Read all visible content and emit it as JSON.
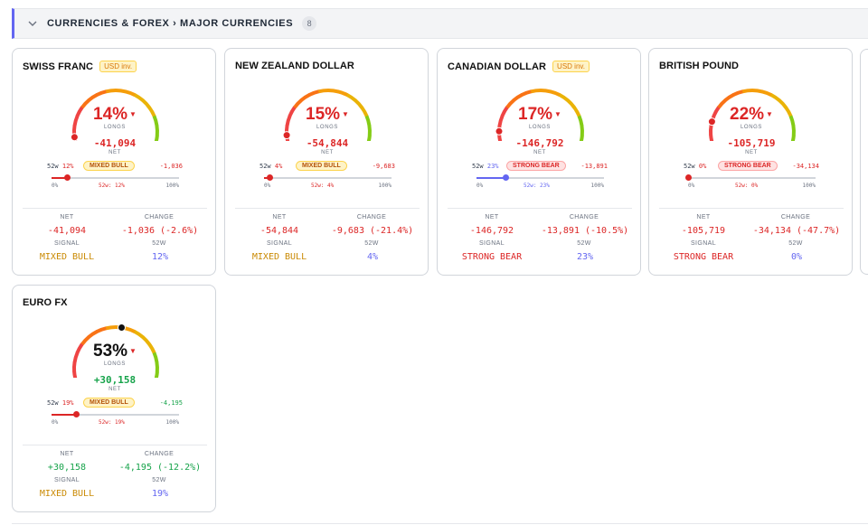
{
  "section": {
    "title": "CURRENCIES & FOREX › MAJOR CURRENCIES",
    "count": "8"
  },
  "labels": {
    "longs": "LONGS",
    "net": "NET",
    "change": "CHANGE",
    "signal": "SIGNAL",
    "w52": "52W",
    "r52": "52w",
    "t0": "0%",
    "t100": "100%"
  },
  "colors": {
    "red": "#dc2626",
    "green": "#16a34a",
    "yellow": "#ca8a04",
    "blue": "#6366f1"
  },
  "cards": [
    {
      "name": "SWISS FRANC",
      "badge": "USD inv.",
      "longs_pct": "14%",
      "longs_value": 14,
      "pct_color": "red",
      "net": "-41,094",
      "net_color": "red",
      "w52_pct": "12%",
      "w52_value": 12,
      "signal_badge": "MIXED BULL",
      "signal_type": "mixed",
      "change_small": "-1,036",
      "change_color": "red",
      "w52_marker": "52w: 12%",
      "stat_net": "-41,094",
      "stat_change": "-1,036 (-2.6%)",
      "stat_signal": "MIXED BULL",
      "stat_w52": "12%"
    },
    {
      "name": "NEW ZEALAND DOLLAR",
      "badge": "",
      "longs_pct": "15%",
      "longs_value": 15,
      "pct_color": "red",
      "net": "-54,844",
      "net_color": "red",
      "w52_pct": "4%",
      "w52_value": 4,
      "signal_badge": "MIXED BULL",
      "signal_type": "mixed",
      "change_small": "-9,683",
      "change_color": "red",
      "w52_marker": "52w: 4%",
      "stat_net": "-54,844",
      "stat_change": "-9,683 (-21.4%)",
      "stat_signal": "MIXED BULL",
      "stat_w52": "4%"
    },
    {
      "name": "CANADIAN DOLLAR",
      "badge": "USD inv.",
      "longs_pct": "17%",
      "longs_value": 17,
      "pct_color": "red",
      "net": "-146,792",
      "net_color": "red",
      "w52_pct": "23%",
      "w52_value": 23,
      "signal_badge": "STRONG BEAR",
      "signal_type": "bear",
      "change_small": "-13,891",
      "change_color": "red",
      "w52_marker": "52w: 23%",
      "stat_net": "-146,792",
      "stat_change": "-13,891 (-10.5%)",
      "stat_signal": "STRONG BEAR",
      "stat_w52": "23%"
    },
    {
      "name": "BRITISH POUND",
      "badge": "",
      "longs_pct": "22%",
      "longs_value": 22,
      "pct_color": "red",
      "net": "-105,719",
      "net_color": "red",
      "w52_pct": "0%",
      "w52_value": 0,
      "signal_badge": "STRONG BEAR",
      "signal_type": "bear",
      "change_small": "-34,134",
      "change_color": "red",
      "w52_marker": "52w: 0%",
      "stat_net": "-105,719",
      "stat_change": "-34,134 (-47.7%)",
      "stat_signal": "STRONG BEAR",
      "stat_w52": "0%"
    },
    {
      "name": "EURO FX",
      "badge": "",
      "longs_pct": "53%",
      "longs_value": 53,
      "pct_color": "dark",
      "net": "+30,158",
      "net_color": "green",
      "w52_pct": "19%",
      "w52_value": 19,
      "signal_badge": "MIXED BULL",
      "signal_type": "mixed",
      "change_small": "-4,195",
      "change_color": "green",
      "w52_marker": "52w: 19%",
      "stat_net": "+30,158",
      "stat_change": "-4,195 (-12.2%)",
      "stat_signal": "MIXED BULL",
      "stat_w52": "19%"
    }
  ]
}
